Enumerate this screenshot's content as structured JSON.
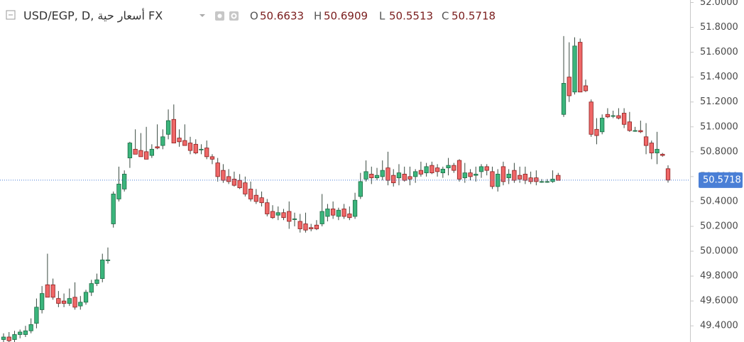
{
  "chart_data": {
    "type": "candlestick",
    "title": "USD/EGP, D, أسعار حية FX",
    "ohlc_labels": [
      "O",
      "H",
      "L",
      "C"
    ],
    "ohlc_values": [
      50.6633,
      50.6909,
      50.5513,
      50.5718
    ],
    "last_price": 50.5718,
    "up_color": "#3bb57c",
    "up_border": "#1c6b44",
    "down_color": "#ef6767",
    "down_border": "#8a1f1f",
    "wick_color": "#3a4a40",
    "last_color": "#4a7fd6",
    "ylim": [
      49.27,
      52.02
    ],
    "yticks": [
      {
        "value": 49.4,
        "label": "49.4000"
      },
      {
        "value": 49.6,
        "label": "49.6000"
      },
      {
        "value": 49.8,
        "label": "49.8000"
      },
      {
        "value": 50.0,
        "label": "50.0000"
      },
      {
        "value": 50.2,
        "label": "50.2000"
      },
      {
        "value": 50.4,
        "label": "50.4000"
      },
      {
        "value": 50.6,
        "label": "50.6000"
      },
      {
        "value": 50.8,
        "label": "50.8000"
      },
      {
        "value": 51.0,
        "label": "51.0000"
      },
      {
        "value": 51.2,
        "label": "51.2000"
      },
      {
        "value": 51.4,
        "label": "51.4000"
      },
      {
        "value": 51.6,
        "label": "51.6000"
      },
      {
        "value": 51.8,
        "label": "51.8000"
      },
      {
        "value": 52.0,
        "label": "52.0000"
      }
    ],
    "open": [
      49.29,
      49.31,
      49.29,
      49.33,
      49.33,
      49.36,
      49.42,
      49.53,
      49.73,
      49.73,
      49.62,
      49.6,
      49.58,
      49.63,
      49.56,
      49.59,
      49.67,
      49.74,
      49.78,
      49.93,
      50.22,
      50.42,
      50.5,
      50.75,
      50.82,
      50.81,
      50.8,
      50.77,
      50.84,
      50.85,
      50.94,
      51.06,
      50.91,
      50.89,
      50.87,
      50.86,
      50.82,
      50.83,
      50.76,
      50.71,
      50.65,
      50.6,
      50.58,
      50.57,
      50.55,
      50.5,
      50.45,
      50.43,
      50.39,
      50.32,
      50.29,
      50.31,
      50.32,
      50.26,
      50.24,
      50.22,
      50.19,
      50.21,
      50.22,
      50.28,
      50.34,
      50.28,
      50.34,
      50.3,
      50.28,
      50.44,
      50.58,
      50.62,
      50.59,
      50.6,
      50.67,
      50.61,
      50.59,
      50.62,
      50.6,
      50.6,
      50.65,
      50.63,
      50.69,
      50.67,
      50.63,
      50.67,
      50.69,
      50.73,
      50.59,
      50.63,
      50.61,
      50.64,
      50.68,
      50.64,
      50.52,
      50.68,
      50.59,
      50.65,
      50.61,
      50.62,
      50.59,
      50.59,
      50.56,
      50.56,
      50.56,
      50.61,
      51.1,
      51.4,
      51.28,
      51.68,
      51.33,
      51.2,
      50.98,
      50.96,
      51.1,
      51.09,
      51.09,
      51.11,
      51.04,
      50.97,
      50.97,
      50.92,
      50.87,
      50.79,
      50.78,
      50.6633
    ],
    "high": [
      49.34,
      49.35,
      49.36,
      49.37,
      49.4,
      49.46,
      49.62,
      49.72,
      49.98,
      49.78,
      49.68,
      49.66,
      49.7,
      49.75,
      49.64,
      49.69,
      49.77,
      49.82,
      49.98,
      50.03,
      50.48,
      50.68,
      50.65,
      50.88,
      50.98,
      50.95,
      51.0,
      50.86,
      51.02,
      50.98,
      51.14,
      51.18,
      50.98,
      51.02,
      50.92,
      50.9,
      50.86,
      50.89,
      50.78,
      50.75,
      50.7,
      50.66,
      50.64,
      50.62,
      50.6,
      50.56,
      50.5,
      50.48,
      50.42,
      50.37,
      50.36,
      50.34,
      50.4,
      50.31,
      50.3,
      50.31,
      50.22,
      50.25,
      50.46,
      50.38,
      50.4,
      50.35,
      50.38,
      50.36,
      50.47,
      50.63,
      50.73,
      50.68,
      50.67,
      50.73,
      50.8,
      50.66,
      50.7,
      50.68,
      50.68,
      50.66,
      50.72,
      50.71,
      50.72,
      50.7,
      50.68,
      50.75,
      50.71,
      50.74,
      50.71,
      50.66,
      50.68,
      50.7,
      50.7,
      50.68,
      50.66,
      50.72,
      50.66,
      50.71,
      50.68,
      50.68,
      50.64,
      50.65,
      50.58,
      50.58,
      50.65,
      50.63,
      51.73,
      51.68,
      51.72,
      51.71,
      51.38,
      51.22,
      51.07,
      51.1,
      51.15,
      51.13,
      51.15,
      51.15,
      51.12,
      51.0,
      51.05,
      51.03,
      50.89,
      50.96,
      50.79,
      50.6909
    ],
    "low": [
      49.26,
      49.27,
      49.27,
      49.3,
      49.31,
      49.34,
      49.38,
      49.5,
      49.63,
      49.61,
      49.55,
      49.55,
      49.56,
      49.53,
      49.53,
      49.57,
      49.64,
      49.72,
      49.75,
      49.9,
      50.19,
      50.4,
      50.48,
      50.67,
      50.79,
      50.77,
      50.76,
      50.75,
      50.82,
      50.82,
      50.9,
      50.87,
      50.84,
      50.85,
      50.78,
      50.78,
      50.78,
      50.74,
      50.7,
      50.56,
      50.55,
      50.54,
      50.52,
      50.5,
      50.44,
      50.4,
      50.38,
      50.36,
      50.28,
      50.26,
      50.25,
      50.25,
      50.18,
      50.2,
      50.15,
      50.15,
      50.16,
      50.17,
      50.2,
      50.24,
      50.26,
      50.25,
      50.26,
      50.25,
      50.26,
      50.42,
      50.56,
      50.54,
      50.57,
      50.57,
      50.53,
      50.52,
      50.53,
      50.56,
      50.53,
      50.55,
      50.6,
      50.6,
      50.62,
      50.6,
      50.59,
      50.61,
      50.63,
      50.56,
      50.55,
      50.57,
      50.56,
      50.59,
      50.61,
      50.5,
      50.48,
      50.53,
      50.54,
      50.55,
      50.55,
      50.54,
      50.54,
      50.53,
      50.55,
      50.55,
      50.55,
      50.57,
      51.08,
      51.2,
      51.26,
      51.28,
      51.28,
      50.92,
      50.86,
      50.94,
      51.07,
      51.07,
      51.06,
      50.99,
      50.96,
      50.96,
      50.95,
      50.78,
      50.74,
      50.7,
      50.76,
      50.5513
    ],
    "close": [
      49.31,
      49.28,
      49.33,
      49.35,
      49.36,
      49.41,
      49.55,
      49.66,
      49.63,
      49.63,
      49.58,
      49.58,
      49.62,
      49.55,
      49.59,
      49.67,
      49.74,
      49.77,
      49.93,
      49.93,
      50.46,
      50.54,
      50.62,
      50.87,
      50.78,
      50.76,
      50.74,
      50.82,
      50.83,
      50.92,
      51.05,
      50.87,
      50.88,
      50.85,
      50.81,
      50.79,
      50.82,
      50.76,
      50.74,
      50.6,
      50.57,
      50.56,
      50.53,
      50.51,
      50.46,
      50.42,
      50.4,
      50.39,
      50.3,
      50.27,
      50.31,
      50.27,
      50.24,
      50.26,
      50.18,
      50.17,
      50.18,
      50.18,
      50.32,
      50.34,
      50.29,
      50.33,
      50.28,
      50.27,
      50.41,
      50.56,
      50.64,
      50.59,
      50.61,
      50.65,
      50.57,
      50.55,
      50.63,
      50.57,
      50.58,
      50.64,
      50.62,
      50.68,
      50.63,
      50.64,
      50.66,
      50.69,
      50.65,
      50.58,
      50.63,
      50.6,
      50.62,
      50.68,
      50.65,
      50.52,
      50.62,
      50.56,
      50.62,
      50.57,
      50.58,
      50.57,
      50.56,
      50.56,
      50.56,
      50.56,
      50.58,
      50.57,
      51.35,
      51.25,
      51.65,
      51.28,
      51.29,
      50.94,
      50.93,
      51.07,
      51.08,
      51.09,
      51.07,
      51.02,
      50.97,
      50.97,
      50.96,
      50.85,
      50.79,
      50.82,
      50.77,
      50.5718
    ]
  }
}
